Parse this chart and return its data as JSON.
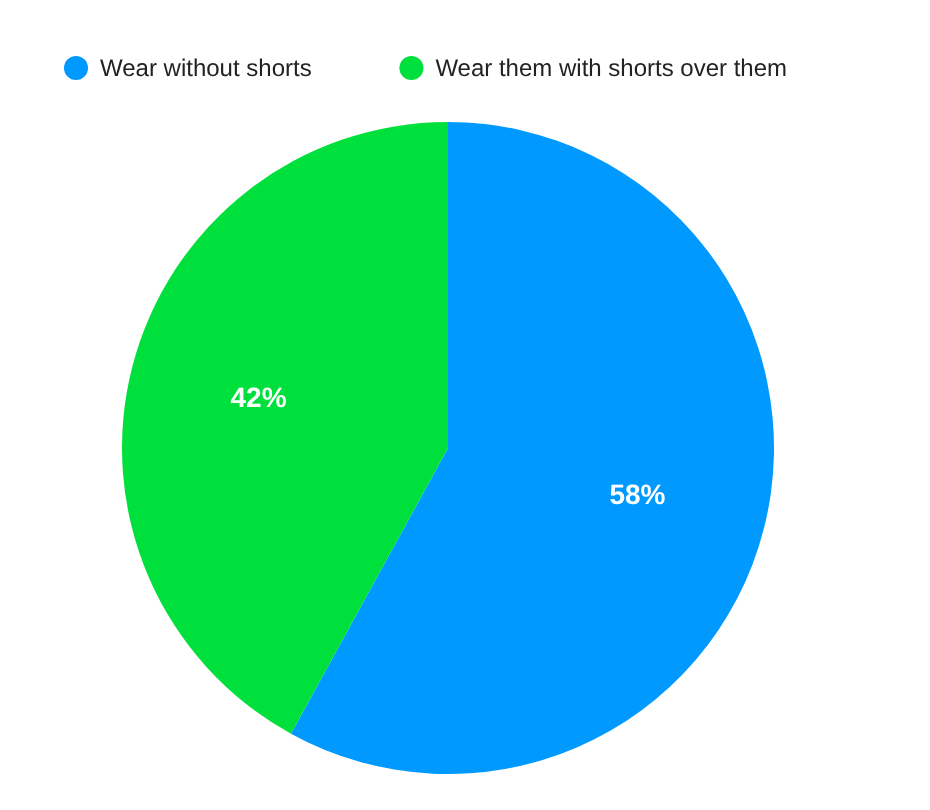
{
  "chart_data": {
    "type": "pie",
    "categories": [
      "Wear without shorts",
      "Wear them with shorts over them"
    ],
    "values": [
      58,
      42
    ],
    "colors": [
      "#0099ff",
      "#00e03c"
    ],
    "value_labels": [
      "58%",
      "42%"
    ],
    "legend": "top left"
  }
}
